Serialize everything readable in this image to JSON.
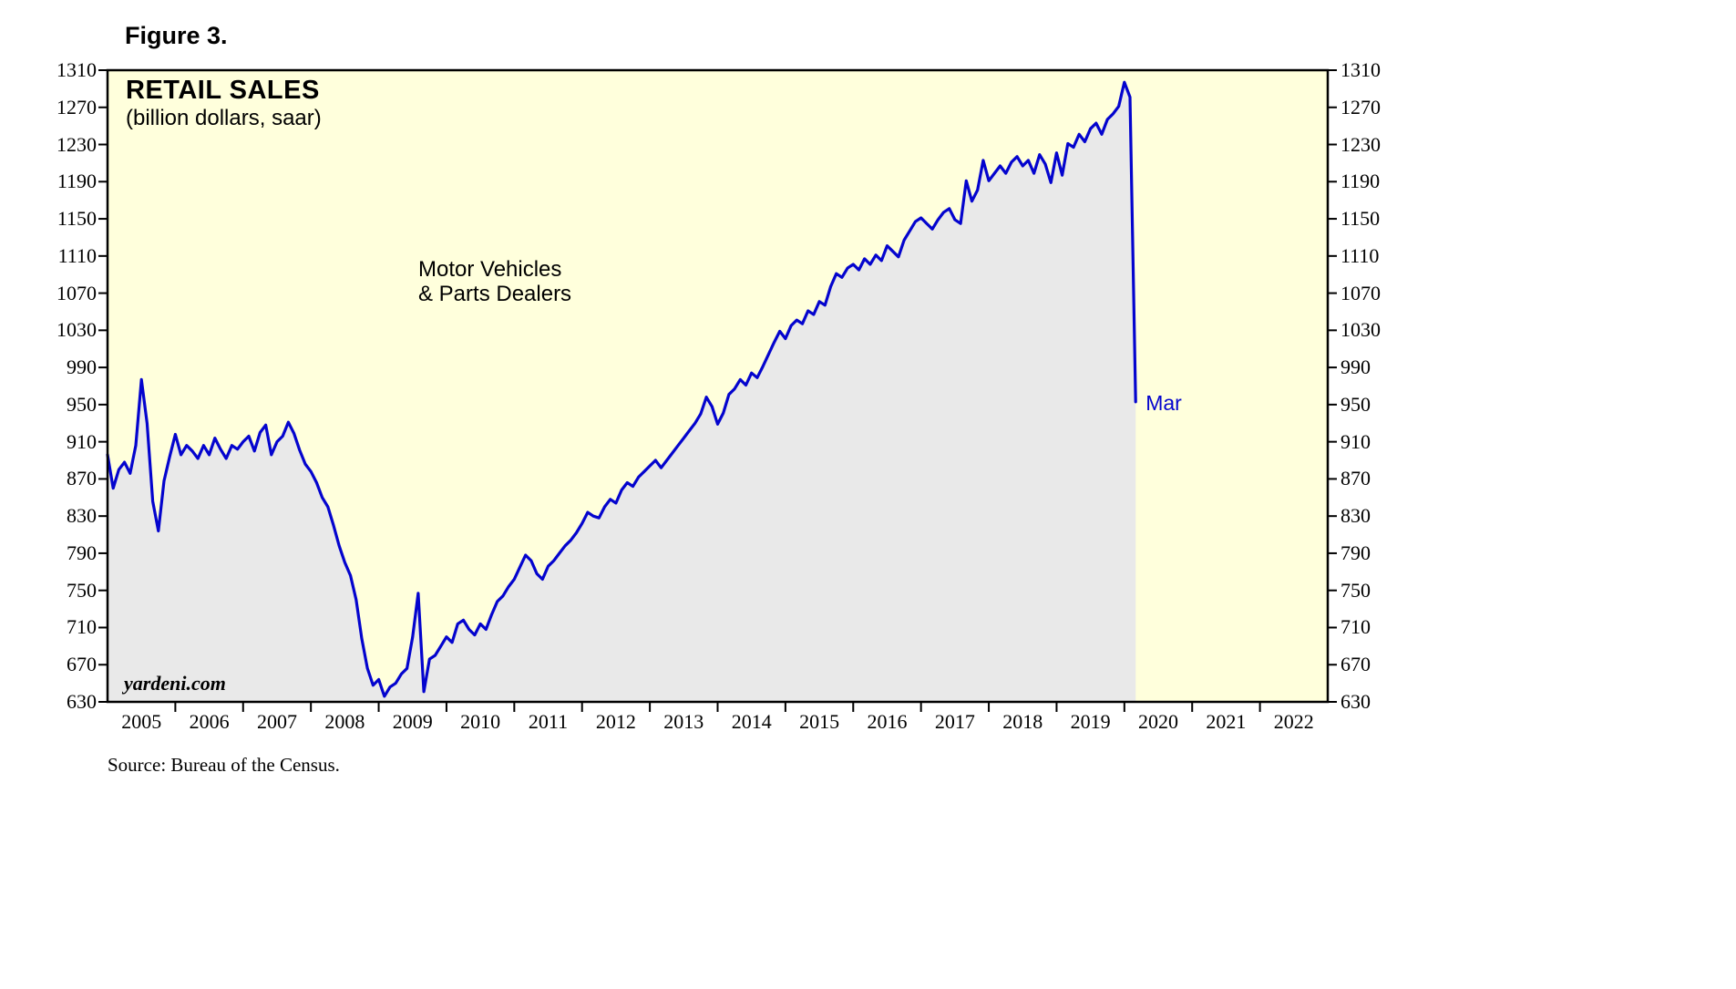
{
  "figure": {
    "label": "Figure 3."
  },
  "source": "Source: Bureau of the Census.",
  "chart_data": {
    "type": "area",
    "title": "RETAIL SALES",
    "subtitle": "(billion dollars, saar)",
    "series_label_line1": "Motor Vehicles",
    "series_label_line2": "& Parts Dealers",
    "last_point_label": "Mar",
    "watermark": "yardeni.com",
    "ylim": [
      630,
      1310
    ],
    "y_tick_step": 40,
    "y_ticks": [
      630,
      670,
      710,
      750,
      790,
      830,
      870,
      910,
      950,
      990,
      1030,
      1070,
      1110,
      1150,
      1190,
      1230,
      1270,
      1310
    ],
    "x_axis_years": [
      2005,
      2006,
      2007,
      2008,
      2009,
      2010,
      2011,
      2012,
      2013,
      2014,
      2015,
      2016,
      2017,
      2018,
      2019,
      2020,
      2021,
      2022
    ],
    "x_start_year": 2005,
    "x_axis_end": 2023,
    "legend_position": "none",
    "grid": false,
    "line_color": "#0404CE",
    "fill_color": "#E9E9E9",
    "plot_bg": "#FFFFDC",
    "frame_color": "#000000",
    "series": [
      {
        "name": "Motor Vehicles & Parts Dealers",
        "start": "2005-01",
        "frequency": "monthly",
        "values": [
          896,
          860,
          880,
          888,
          876,
          906,
          977,
          930,
          846,
          814,
          868,
          894,
          918,
          896,
          906,
          900,
          892,
          906,
          896,
          914,
          902,
          892,
          906,
          902,
          910,
          916,
          900,
          920,
          928,
          896,
          910,
          916,
          931,
          919,
          901,
          886,
          878,
          866,
          850,
          840,
          820,
          798,
          780,
          766,
          740,
          698,
          666,
          648,
          654,
          636,
          646,
          650,
          660,
          666,
          700,
          747,
          641,
          676,
          680,
          690,
          700,
          694,
          714,
          718,
          708,
          702,
          714,
          708,
          724,
          738,
          744,
          754,
          762,
          775,
          788,
          782,
          768,
          762,
          776,
          782,
          790,
          798,
          804,
          812,
          822,
          834,
          830,
          828,
          840,
          848,
          844,
          858,
          866,
          862,
          872,
          878,
          884,
          890,
          882,
          890,
          898,
          906,
          914,
          922,
          930,
          940,
          958,
          948,
          929,
          941,
          961,
          967,
          977,
          971,
          984,
          979,
          991,
          1004,
          1017,
          1029,
          1021,
          1035,
          1041,
          1037,
          1051,
          1047,
          1061,
          1057,
          1077,
          1091,
          1087,
          1097,
          1101,
          1095,
          1107,
          1101,
          1111,
          1105,
          1121,
          1115,
          1109,
          1127,
          1137,
          1147,
          1151,
          1145,
          1139,
          1149,
          1157,
          1161,
          1149,
          1145,
          1191,
          1169,
          1181,
          1213,
          1191,
          1199,
          1207,
          1199,
          1211,
          1217,
          1207,
          1213,
          1199,
          1219,
          1209,
          1189,
          1221,
          1197,
          1231,
          1227,
          1241,
          1233,
          1247,
          1253,
          1241,
          1257,
          1263,
          1271,
          1297,
          1281,
          953
        ]
      }
    ]
  }
}
